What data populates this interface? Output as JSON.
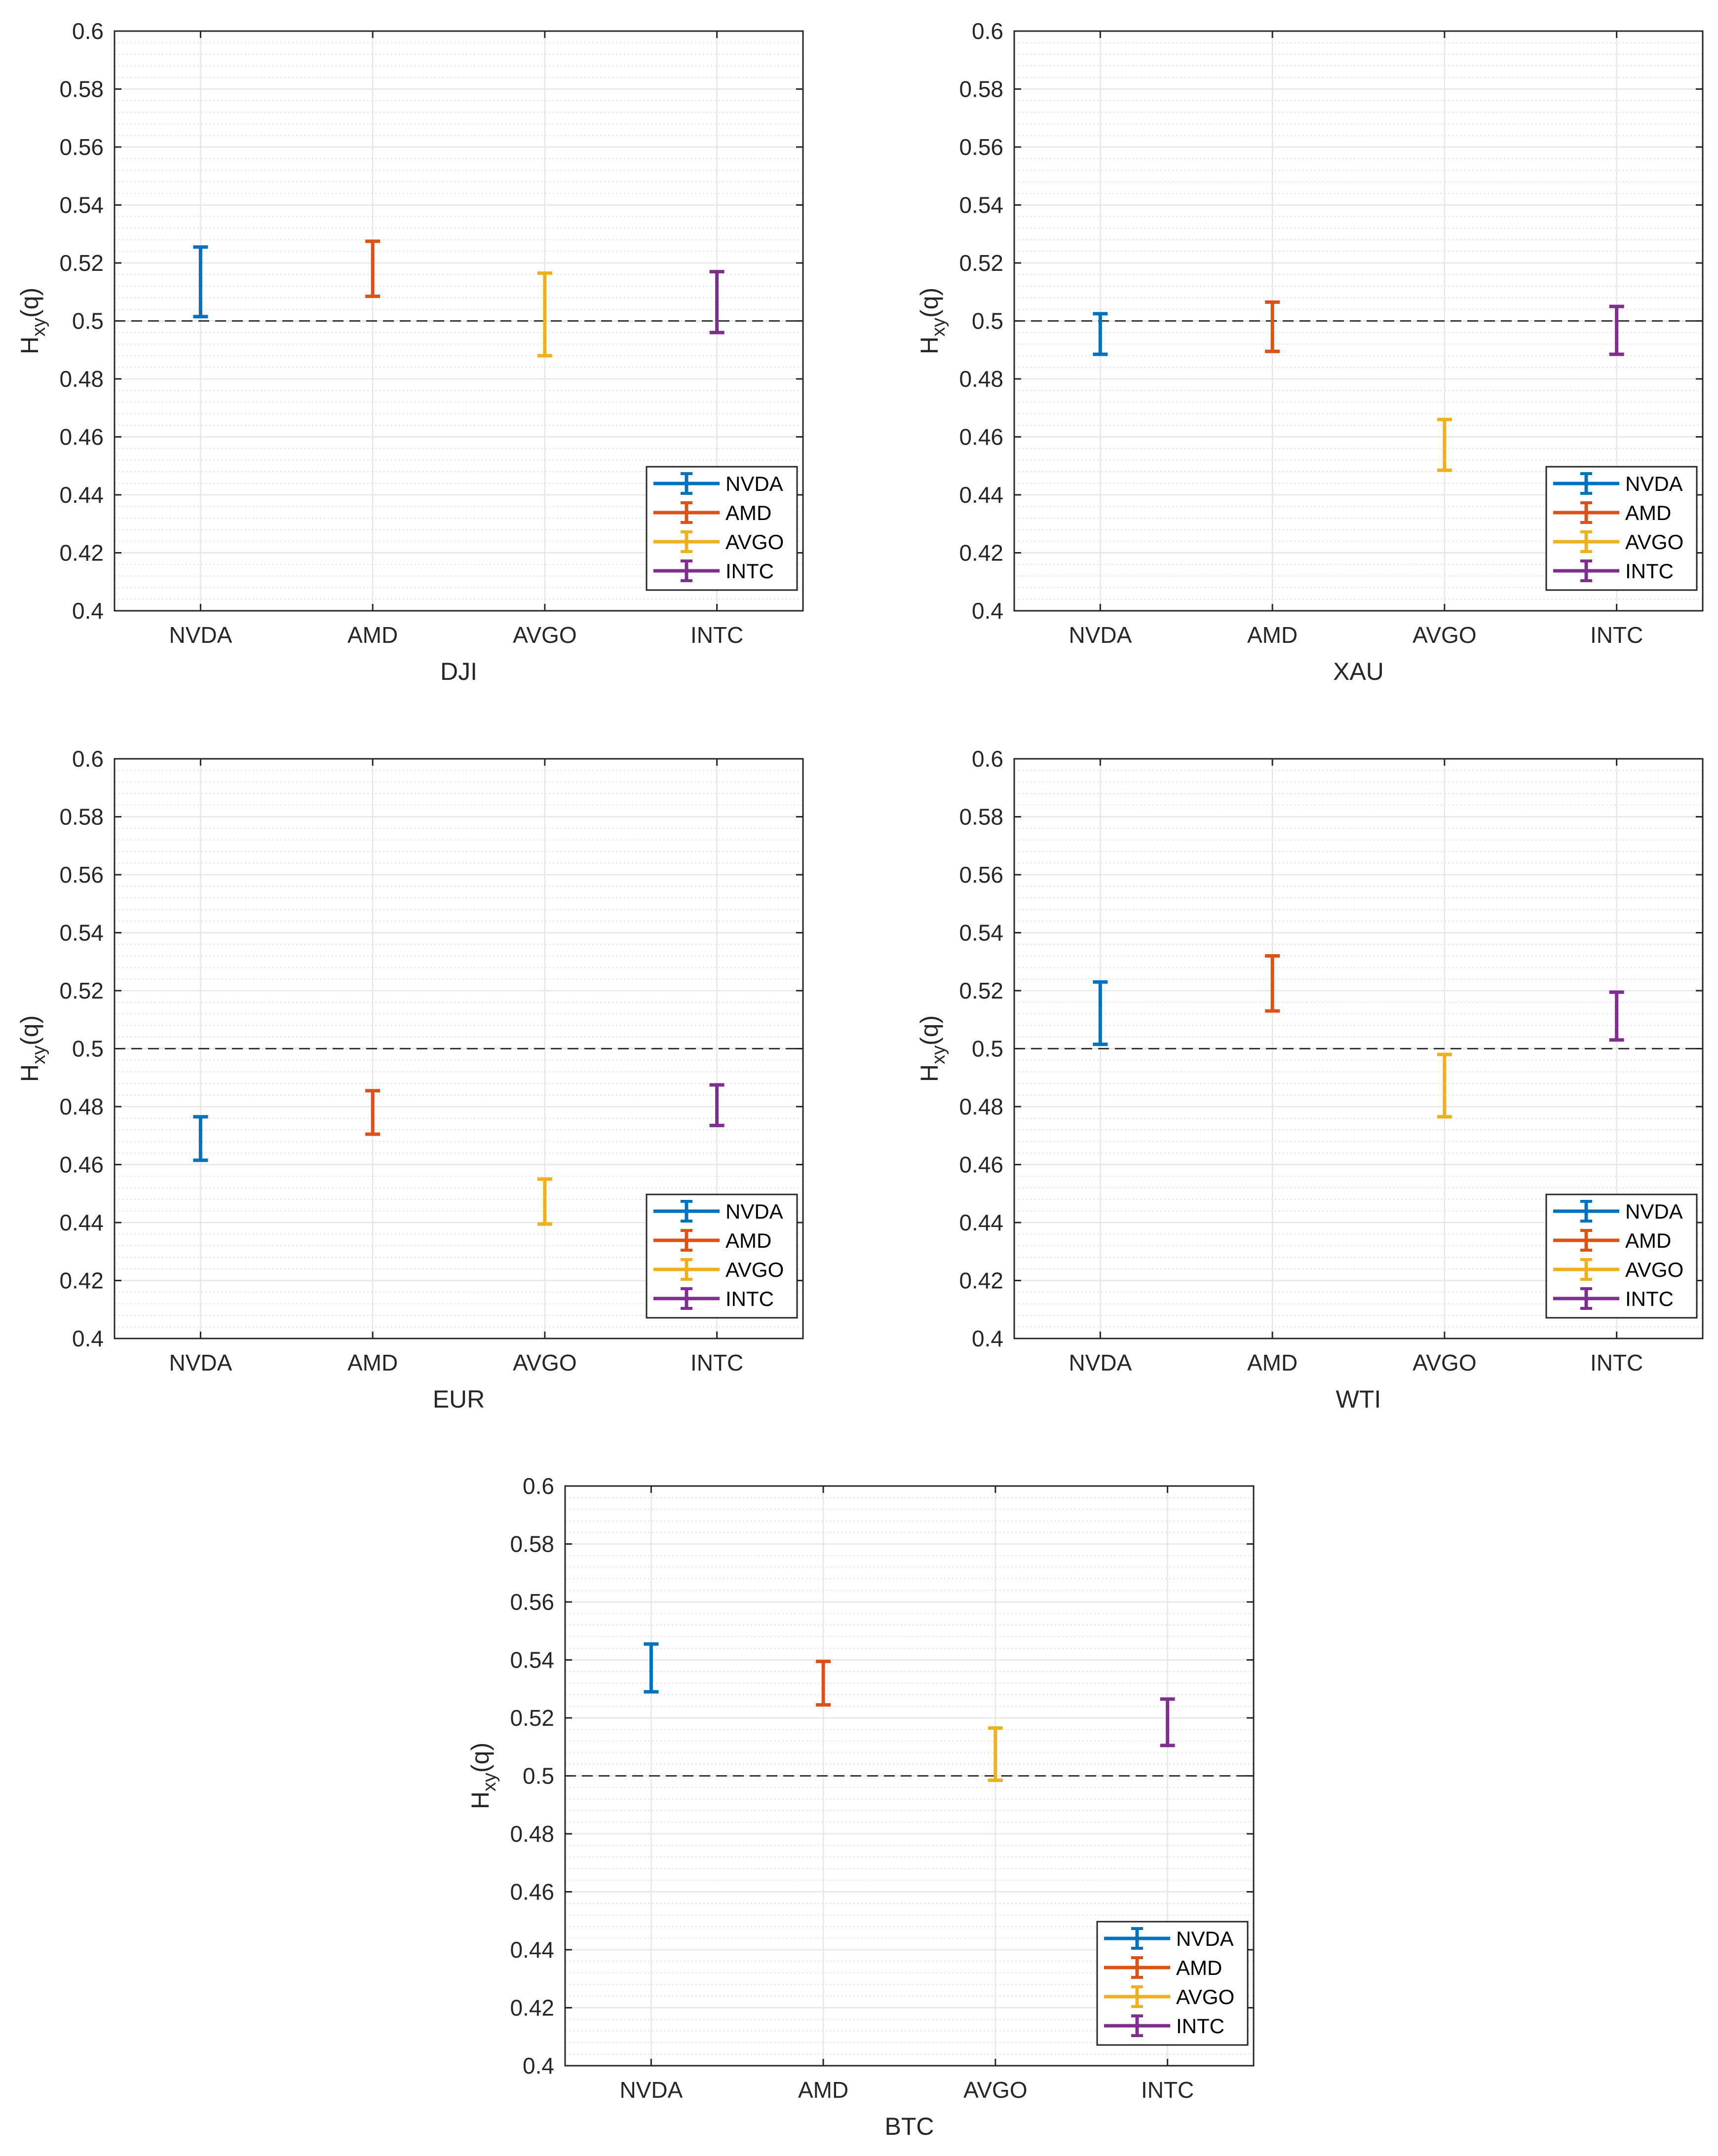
{
  "colors": {
    "NVDA": "#0072BD",
    "AMD": "#D95319",
    "AVGO": "#EDB120",
    "INTC": "#7E2F8E",
    "axis": "#262626",
    "grid": "#e6e6e6",
    "reference": "#333333"
  },
  "chart_data": [
    {
      "type": "errorbar",
      "xlabel": "DJI",
      "ylabel": "H",
      "ylabel_sub": "xy",
      "ylabel_suffix": "(q)",
      "categories": [
        "NVDA",
        "AMD",
        "AVGO",
        "INTC"
      ],
      "ylim": [
        0.4,
        0.6
      ],
      "yticks": [
        "0.4",
        "0.42",
        "0.44",
        "0.46",
        "0.48",
        "0.5",
        "0.52",
        "0.54",
        "0.56",
        "0.58",
        "0.6"
      ],
      "reference_line": 0.5,
      "grid": true,
      "legend": {
        "location": "bottom-right",
        "entries": [
          "NVDA",
          "AMD",
          "AVGO",
          "INTC"
        ]
      },
      "series": [
        {
          "name": "NVDA",
          "low": 0.5015,
          "high": 0.5255
        },
        {
          "name": "AMD",
          "low": 0.5085,
          "high": 0.5275
        },
        {
          "name": "AVGO",
          "low": 0.488,
          "high": 0.5165
        },
        {
          "name": "INTC",
          "low": 0.496,
          "high": 0.517
        }
      ]
    },
    {
      "type": "errorbar",
      "xlabel": "XAU",
      "ylabel": "H",
      "ylabel_sub": "xy",
      "ylabel_suffix": "(q)",
      "categories": [
        "NVDA",
        "AMD",
        "AVGO",
        "INTC"
      ],
      "ylim": [
        0.4,
        0.6
      ],
      "yticks": [
        "0.4",
        "0.42",
        "0.44",
        "0.46",
        "0.48",
        "0.5",
        "0.52",
        "0.54",
        "0.56",
        "0.58",
        "0.6"
      ],
      "reference_line": 0.5,
      "grid": true,
      "legend": {
        "location": "bottom-right",
        "entries": [
          "NVDA",
          "AMD",
          "AVGO",
          "INTC"
        ]
      },
      "series": [
        {
          "name": "NVDA",
          "low": 0.4885,
          "high": 0.5025
        },
        {
          "name": "AMD",
          "low": 0.4895,
          "high": 0.5065
        },
        {
          "name": "AVGO",
          "low": 0.4485,
          "high": 0.466
        },
        {
          "name": "INTC",
          "low": 0.4885,
          "high": 0.505
        }
      ]
    },
    {
      "type": "errorbar",
      "xlabel": "EUR",
      "ylabel": "H",
      "ylabel_sub": "xy",
      "ylabel_suffix": "(q)",
      "categories": [
        "NVDA",
        "AMD",
        "AVGO",
        "INTC"
      ],
      "ylim": [
        0.4,
        0.6
      ],
      "yticks": [
        "0.4",
        "0.42",
        "0.44",
        "0.46",
        "0.48",
        "0.5",
        "0.52",
        "0.54",
        "0.56",
        "0.58",
        "0.6"
      ],
      "reference_line": 0.5,
      "grid": true,
      "legend": {
        "location": "bottom-right",
        "entries": [
          "NVDA",
          "AMD",
          "AVGO",
          "INTC"
        ]
      },
      "series": [
        {
          "name": "NVDA",
          "low": 0.4615,
          "high": 0.4765
        },
        {
          "name": "AMD",
          "low": 0.4705,
          "high": 0.4855
        },
        {
          "name": "AVGO",
          "low": 0.4395,
          "high": 0.455
        },
        {
          "name": "INTC",
          "low": 0.4735,
          "high": 0.4875
        }
      ]
    },
    {
      "type": "errorbar",
      "xlabel": "WTI",
      "ylabel": "H",
      "ylabel_sub": "xy",
      "ylabel_suffix": "(q)",
      "categories": [
        "NVDA",
        "AMD",
        "AVGO",
        "INTC"
      ],
      "ylim": [
        0.4,
        0.6
      ],
      "yticks": [
        "0.4",
        "0.42",
        "0.44",
        "0.46",
        "0.48",
        "0.5",
        "0.52",
        "0.54",
        "0.56",
        "0.58",
        "0.6"
      ],
      "reference_line": 0.5,
      "grid": true,
      "legend": {
        "location": "bottom-right",
        "entries": [
          "NVDA",
          "AMD",
          "AVGO",
          "INTC"
        ]
      },
      "series": [
        {
          "name": "NVDA",
          "low": 0.5015,
          "high": 0.523
        },
        {
          "name": "AMD",
          "low": 0.513,
          "high": 0.532
        },
        {
          "name": "AVGO",
          "low": 0.4765,
          "high": 0.498
        },
        {
          "name": "INTC",
          "low": 0.503,
          "high": 0.5195
        }
      ]
    },
    {
      "type": "errorbar",
      "xlabel": "BTC",
      "ylabel": "H",
      "ylabel_sub": "xy",
      "ylabel_suffix": "(q)",
      "categories": [
        "NVDA",
        "AMD",
        "AVGO",
        "INTC"
      ],
      "ylim": [
        0.4,
        0.6
      ],
      "yticks": [
        "0.4",
        "0.42",
        "0.44",
        "0.46",
        "0.48",
        "0.5",
        "0.52",
        "0.54",
        "0.56",
        "0.58",
        "0.6"
      ],
      "reference_line": 0.5,
      "grid": true,
      "legend": {
        "location": "bottom-right",
        "entries": [
          "NVDA",
          "AMD",
          "AVGO",
          "INTC"
        ]
      },
      "series": [
        {
          "name": "NVDA",
          "low": 0.529,
          "high": 0.5455
        },
        {
          "name": "AMD",
          "low": 0.5245,
          "high": 0.5395
        },
        {
          "name": "AVGO",
          "low": 0.4985,
          "high": 0.5165
        },
        {
          "name": "INTC",
          "low": 0.5105,
          "high": 0.5265
        }
      ]
    }
  ]
}
